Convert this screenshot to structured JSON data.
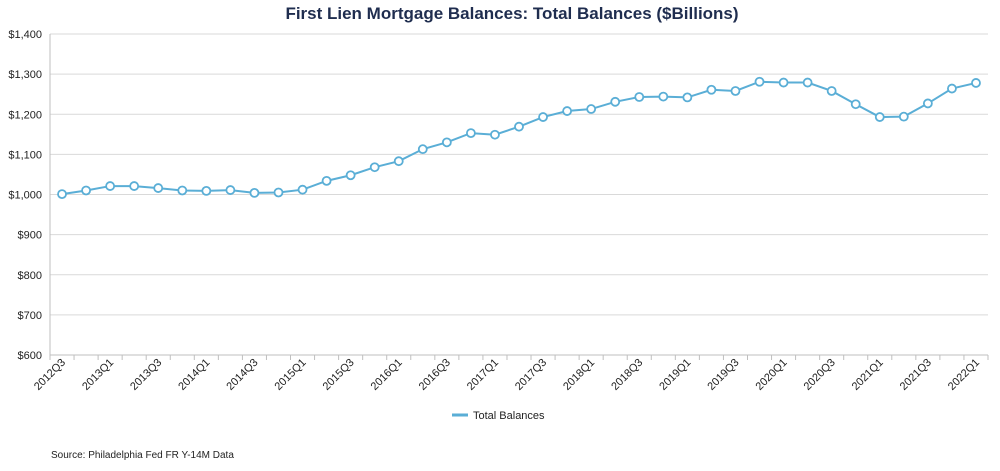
{
  "chart_data": {
    "type": "line",
    "title": "First Lien Mortgage Balances: Total Balances ($Billions)",
    "xlabel": "",
    "ylabel": "",
    "ylim": [
      600,
      1400
    ],
    "y_ticks": [
      600,
      700,
      800,
      900,
      1000,
      1100,
      1200,
      1300,
      1400
    ],
    "y_tick_labels": [
      "$600",
      "$700",
      "$800",
      "$900",
      "$1,000",
      "$1,100",
      "$1,200",
      "$1,300",
      "$1,400"
    ],
    "categories": [
      "2012Q3",
      "2012Q4",
      "2013Q1",
      "2013Q2",
      "2013Q3",
      "2013Q4",
      "2014Q1",
      "2014Q2",
      "2014Q3",
      "2014Q4",
      "2015Q1",
      "2015Q2",
      "2015Q3",
      "2015Q4",
      "2016Q1",
      "2016Q2",
      "2016Q3",
      "2016Q4",
      "2017Q1",
      "2017Q2",
      "2017Q3",
      "2017Q4",
      "2018Q1",
      "2018Q2",
      "2018Q3",
      "2018Q4",
      "2019Q1",
      "2019Q2",
      "2019Q3",
      "2019Q4",
      "2020Q1",
      "2020Q2",
      "2020Q3",
      "2020Q4",
      "2021Q1",
      "2021Q2",
      "2021Q3",
      "2021Q4",
      "2022Q1"
    ],
    "x_tick_labels": [
      "2012Q3",
      "2013Q1",
      "2013Q3",
      "2014Q1",
      "2014Q3",
      "2015Q1",
      "2015Q3",
      "2016Q1",
      "2016Q3",
      "2017Q1",
      "2017Q3",
      "2018Q1",
      "2018Q3",
      "2019Q1",
      "2019Q3",
      "2020Q1",
      "2020Q3",
      "2021Q1",
      "2021Q3",
      "2022Q1"
    ],
    "grid": true,
    "legend_position": "bottom",
    "series": [
      {
        "name": "Total Balances",
        "color": "#5aaed6",
        "values": [
          1001,
          1010,
          1021,
          1021,
          1016,
          1010,
          1009,
          1011,
          1004,
          1005,
          1012,
          1034,
          1048,
          1068,
          1083,
          1113,
          1130,
          1153,
          1149,
          1169,
          1193,
          1208,
          1213,
          1231,
          1243,
          1244,
          1242,
          1261,
          1258,
          1281,
          1279,
          1279,
          1258,
          1225,
          1193,
          1194,
          1227,
          1264,
          1278
        ]
      }
    ]
  },
  "source_note": "Source: Philadelphia Fed FR Y-14M Data"
}
